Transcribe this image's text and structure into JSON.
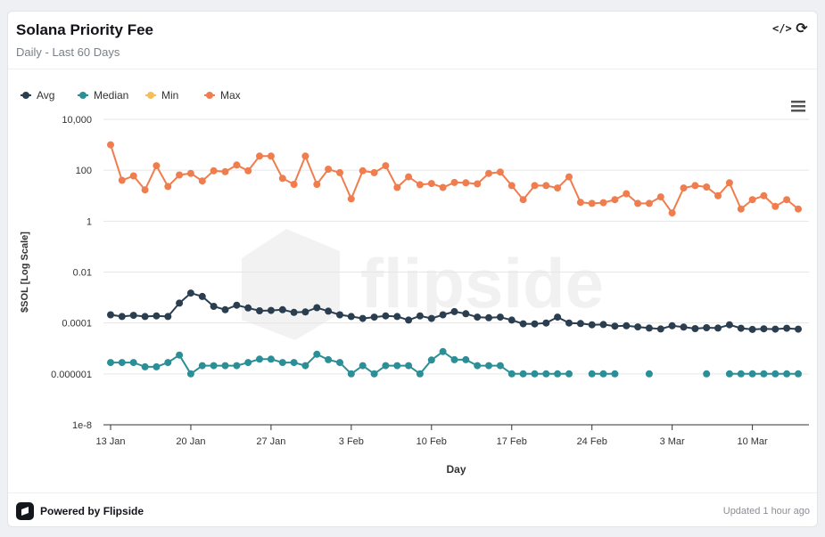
{
  "header": {
    "title": "Solana Priority Fee",
    "subtitle": "Daily - Last 60 Days",
    "embed_icon": "code-embed-icon",
    "refresh_icon": "refresh-icon"
  },
  "footer": {
    "powered_label": "Powered by Flipside",
    "updated_label": "Updated 1 hour ago",
    "logo_icon": "flipside-logo-icon"
  },
  "watermark": "flipside",
  "chart_data": {
    "type": "line",
    "title": "",
    "xlabel": "Day",
    "ylabel": "$SOL [Log Scale]",
    "yscale": "log",
    "ylim": [
      1e-08,
      10000
    ],
    "y_ticks": [
      1e-08,
      1e-06,
      0.0001,
      0.01,
      1,
      100,
      10000
    ],
    "y_tick_labels": [
      "1e-8",
      "0.000001",
      "0.0001",
      "0.01",
      "1",
      "100",
      "10,000"
    ],
    "x_start": "2025-01-13",
    "x_ticks": [
      {
        "date": "2025-01-13",
        "label": "13 Jan"
      },
      {
        "date": "2025-01-20",
        "label": "20 Jan"
      },
      {
        "date": "2025-01-27",
        "label": "27 Jan"
      },
      {
        "date": "2025-02-03",
        "label": "3 Feb"
      },
      {
        "date": "2025-02-10",
        "label": "10 Feb"
      },
      {
        "date": "2025-02-17",
        "label": "17 Feb"
      },
      {
        "date": "2025-02-24",
        "label": "24 Feb"
      },
      {
        "date": "2025-03-03",
        "label": "3 Mar"
      },
      {
        "date": "2025-03-10",
        "label": "10 Mar"
      }
    ],
    "grid": true,
    "legend_position": "top-left",
    "series": [
      {
        "name": "Avg",
        "color": "#2b3e50",
        "values": [
          0.00021,
          0.00018,
          0.0002,
          0.00018,
          0.00019,
          0.00018,
          0.0006,
          0.0015,
          0.0011,
          0.00045,
          0.00033,
          0.0005,
          0.00039,
          0.0003,
          0.00031,
          0.00033,
          0.00026,
          0.00027,
          0.0004,
          0.00029,
          0.00021,
          0.00018,
          0.00015,
          0.00017,
          0.00019,
          0.00018,
          0.00013,
          0.00019,
          0.00015,
          0.00021,
          0.00028,
          0.00023,
          0.00017,
          0.00016,
          0.00017,
          0.00013,
          9.3e-05,
          9.2e-05,
          0.0001,
          0.00017,
          0.0001,
          9.5e-05,
          8.5e-05,
          8.7e-05,
          7.5e-05,
          7.8e-05,
          7e-05,
          6.3e-05,
          5.8e-05,
          7.8e-05,
          6.9e-05,
          6e-05,
          6.5e-05,
          6.3e-05,
          8.5e-05,
          6.2e-05,
          5.6e-05,
          5.9e-05,
          5.7e-05,
          6.2e-05,
          5.7e-05
        ]
      },
      {
        "name": "Median",
        "color": "#2b8f97",
        "values": [
          2.8e-06,
          2.8e-06,
          2.8e-06,
          1.9e-06,
          1.9e-06,
          2.8e-06,
          5.5e-06,
          1e-06,
          2.1e-06,
          2.1e-06,
          2.1e-06,
          2.1e-06,
          2.8e-06,
          3.8e-06,
          3.8e-06,
          2.8e-06,
          2.8e-06,
          2.1e-06,
          5.9e-06,
          3.6e-06,
          2.8e-06,
          1e-06,
          2.1e-06,
          1e-06,
          2.1e-06,
          2.1e-06,
          2.1e-06,
          1e-06,
          3.5e-06,
          7.5e-06,
          3.6e-06,
          3.6e-06,
          2.1e-06,
          2.1e-06,
          2.1e-06,
          1e-06,
          1e-06,
          1e-06,
          1e-06,
          1e-06,
          1e-06,
          null,
          1e-06,
          1e-06,
          1e-06,
          null,
          null,
          1e-06,
          null,
          null,
          null,
          null,
          1e-06,
          null,
          1e-06,
          1e-06,
          1e-06,
          1e-06,
          1e-06,
          1e-06,
          1e-06
        ]
      },
      {
        "name": "Min",
        "color": "#f4bf5a",
        "values": []
      },
      {
        "name": "Max",
        "color": "#f07d4e",
        "values": [
          1000,
          40,
          60,
          17,
          150,
          23,
          65,
          75,
          38,
          95,
          88,
          160,
          95,
          360,
          360,
          48,
          28,
          360,
          28,
          110,
          80,
          7.5,
          95,
          80,
          150,
          21,
          55,
          27,
          30,
          21,
          33,
          32,
          29,
          75,
          85,
          25,
          7,
          25,
          25,
          20,
          55,
          5.5,
          5,
          5.3,
          7,
          12,
          5,
          5,
          9,
          2.1,
          20,
          25,
          22,
          10,
          32,
          3,
          7,
          10,
          3.8,
          7,
          3
        ]
      }
    ]
  }
}
